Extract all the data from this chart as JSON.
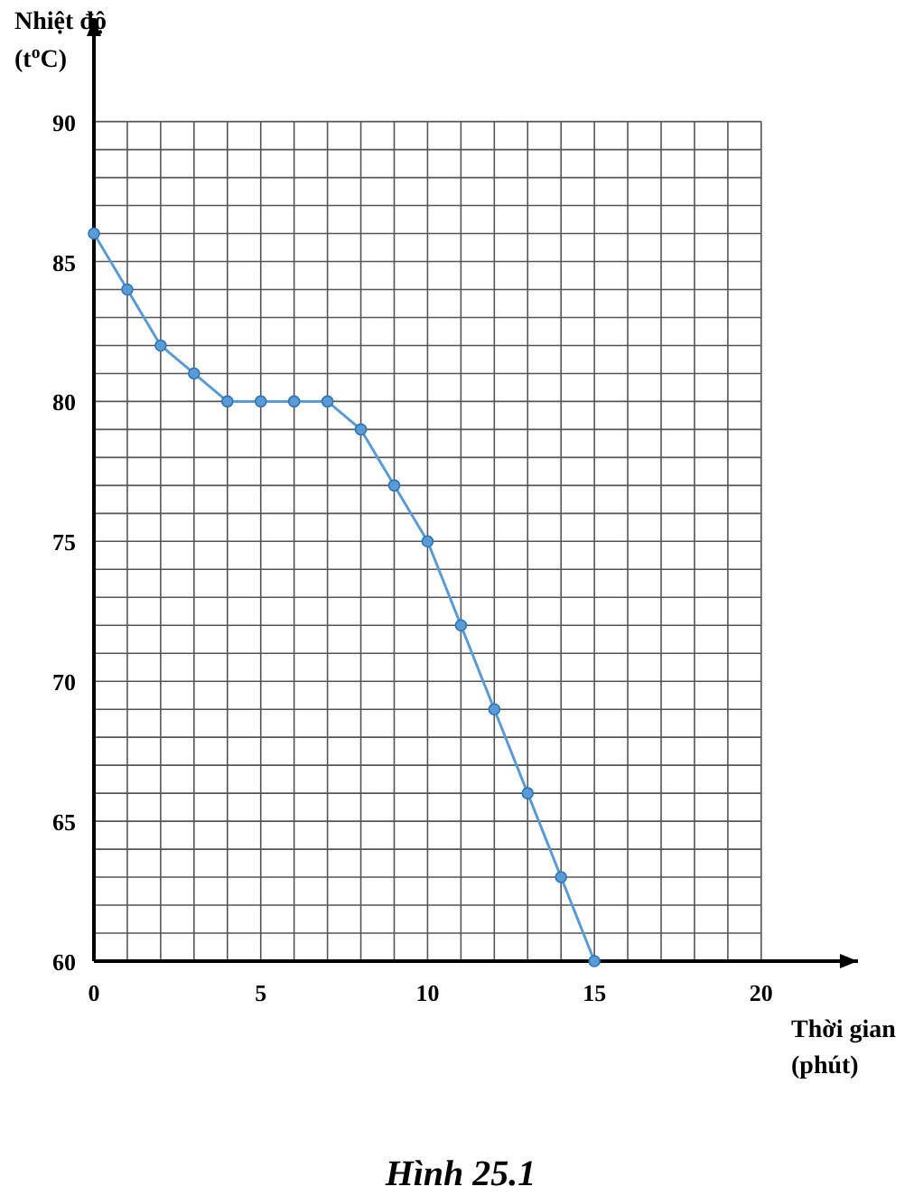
{
  "chart_data": {
    "type": "line",
    "title": "Hình 25.1",
    "xlabel": "Thời gian (phút)",
    "ylabel": "Nhiệt độ (t$^{o}$C)",
    "x": [
      0,
      1,
      2,
      3,
      4,
      5,
      6,
      7,
      8,
      9,
      10,
      11,
      12,
      13,
      14,
      15
    ],
    "series": [
      {
        "color": "#5b9bd5",
        "values": [
          86,
          84,
          82,
          81,
          80,
          80,
          80,
          80,
          79,
          77,
          75,
          72,
          69,
          66,
          63,
          60
        ]
      }
    ],
    "xlim": [
      0,
      22.9
    ],
    "ylim": [
      60,
      93.7
    ],
    "xticks": [
      0,
      5,
      10,
      15,
      20
    ],
    "yticks": [
      60,
      65,
      70,
      75,
      80,
      85,
      90
    ],
    "grid": true,
    "marker": "circle",
    "line_style": "solid"
  }
}
